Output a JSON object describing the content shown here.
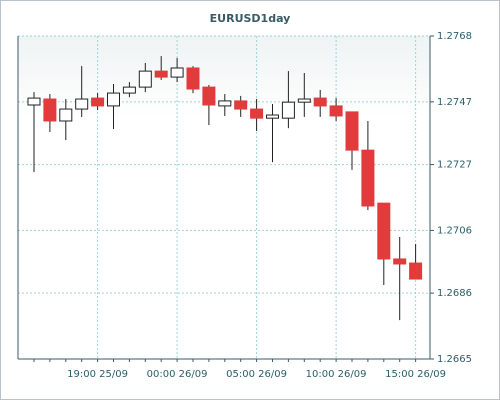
{
  "chart_data": {
    "type": "candlestick",
    "title": "EURUSD1day",
    "categories": [
      null,
      null,
      null,
      null,
      "19:00 25/09",
      null,
      null,
      null,
      null,
      "00:00 26/09",
      null,
      null,
      null,
      null,
      "05:00 26/09",
      null,
      null,
      null,
      null,
      "10:00 26/09",
      null,
      null,
      null,
      null,
      "15:00 26/09"
    ],
    "open": [
      1.2746,
      1.27479,
      1.27409,
      1.27447,
      1.27482,
      1.27457,
      1.27498,
      1.27517,
      1.27568,
      1.27549,
      1.27578,
      1.27517,
      1.27457,
      1.27473,
      1.27447,
      1.27418,
      1.27418,
      1.27469,
      1.27482,
      1.27457,
      1.27438,
      1.27316,
      1.27147,
      1.26969,
      1.26956
    ],
    "high": [
      1.27501,
      1.27495,
      1.27479,
      1.27584,
      1.27498,
      1.27527,
      1.27533,
      1.27594,
      1.27616,
      1.2761,
      1.27584,
      1.27524,
      1.27495,
      1.27489,
      1.27479,
      1.27463,
      1.27568,
      1.27562,
      1.27508,
      1.27482,
      1.27438,
      1.27409,
      1.27147,
      1.27039,
      1.27017
    ],
    "low": [
      1.27246,
      1.27374,
      1.27348,
      1.27422,
      1.27444,
      1.27383,
      1.27485,
      1.27501,
      1.2754,
      1.27533,
      1.27498,
      1.27396,
      1.27425,
      1.27422,
      1.27377,
      1.27278,
      1.27386,
      1.27422,
      1.27422,
      1.27409,
      1.27253,
      1.27125,
      1.26886,
      1.26774,
      1.26905
    ],
    "close": [
      1.27482,
      1.27409,
      1.27447,
      1.27479,
      1.27457,
      1.27498,
      1.27517,
      1.27568,
      1.27549,
      1.27578,
      1.27511,
      1.2746,
      1.27473,
      1.27447,
      1.27418,
      1.27428,
      1.27469,
      1.27479,
      1.27457,
      1.27425,
      1.27316,
      1.27138,
      1.26969,
      1.26953,
      1.26905
    ],
    "up_color": "#ffffff",
    "down_color": "#e23b3b",
    "ylim": [
      1.2665,
      1.2768
    ],
    "yticks": [
      1.2665,
      1.2686,
      1.2706,
      1.2727,
      1.2747,
      1.2768
    ],
    "grid": true
  }
}
